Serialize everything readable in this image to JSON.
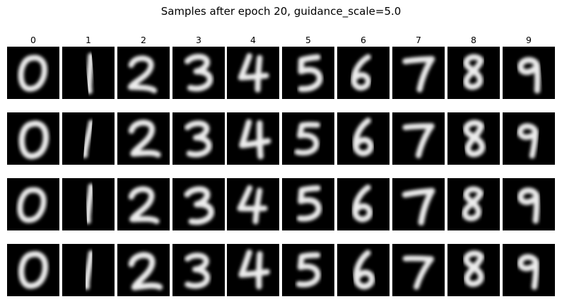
{
  "figure": {
    "title": "Samples after epoch 20, guidance_scale=5.0",
    "columns": [
      {
        "label": "0",
        "glyph": "digit-0"
      },
      {
        "label": "1",
        "glyph": "digit-1"
      },
      {
        "label": "2",
        "glyph": "digit-2"
      },
      {
        "label": "3",
        "glyph": "digit-3"
      },
      {
        "label": "4",
        "glyph": "digit-4"
      },
      {
        "label": "5",
        "glyph": "digit-5"
      },
      {
        "label": "6",
        "glyph": "digit-6"
      },
      {
        "label": "7",
        "glyph": "digit-7"
      },
      {
        "label": "8",
        "glyph": "digit-8"
      },
      {
        "label": "9",
        "glyph": "digit-9"
      }
    ],
    "row_count": 4,
    "colors": {
      "background": "#ffffff",
      "tile": "#000000",
      "stroke": "#ececec"
    }
  }
}
